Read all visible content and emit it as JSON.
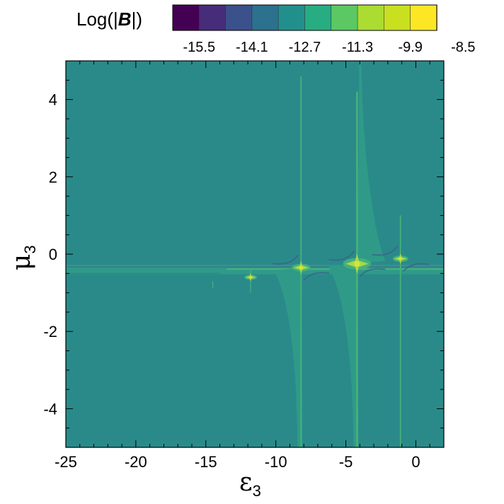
{
  "chart_data": {
    "type": "heatmap",
    "colorbar": {
      "title_prefix": "Log(|",
      "title_symbol": "B",
      "title_suffix": "|)",
      "tick_labels": [
        "-15.5",
        "-14.1",
        "-12.7",
        "-11.3",
        "-9.9",
        "-8.5"
      ],
      "colors": [
        "#440154",
        "#472c7a",
        "#3b518b",
        "#2c718e",
        "#21908d",
        "#27ad81",
        "#5cc863",
        "#aadc32",
        "#c8e020",
        "#fde725"
      ]
    },
    "xaxis": {
      "symbol": "ε",
      "subscript": "3",
      "range": [
        -25,
        2
      ],
      "ticks": [
        -25,
        -20,
        -15,
        -10,
        -5,
        0
      ],
      "tick_labels": [
        "-25",
        "-20",
        "-15",
        "-10",
        "-5",
        "0"
      ]
    },
    "yaxis": {
      "symbol": "μ",
      "subscript": "3",
      "range": [
        -5,
        5
      ],
      "ticks": [
        -4,
        -2,
        0,
        2,
        4
      ],
      "tick_labels": [
        "-4",
        "-2",
        "0",
        "2",
        "4"
      ]
    },
    "background_color": "#2a8a8a",
    "colors": {
      "background": "#2a8a8a",
      "band": "#2f9a88",
      "band_light": "#48b27a",
      "dark": "#3d5f8e",
      "bright": "#d6e43a",
      "peak": "#a8d84a"
    },
    "features": {
      "horizontal_band": {
        "mu_center": -0.4,
        "mu_halfwidth": 0.12,
        "x_end": 2
      },
      "resonances": [
        {
          "epsilon": -8.2,
          "mu": -0.35
        },
        {
          "epsilon": -4.2,
          "mu": -0.25
        },
        {
          "epsilon": -1.1,
          "mu": -0.12
        },
        {
          "epsilon": -11.8,
          "mu": -0.6
        }
      ]
    }
  }
}
